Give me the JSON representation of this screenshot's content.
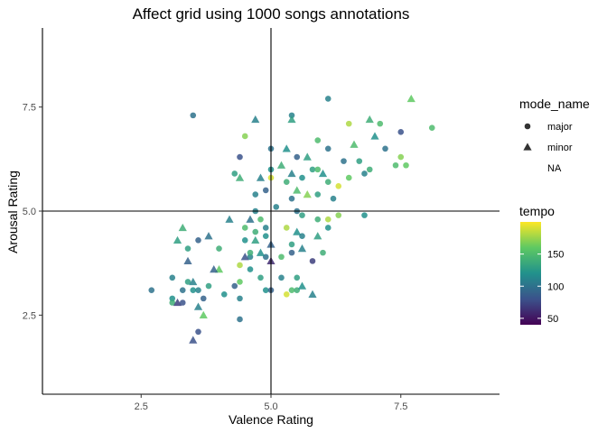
{
  "chart_data": {
    "type": "scatter",
    "title": "Affect grid using 1000 songs annotations",
    "xlabel": "Valence Rating",
    "ylabel": "Arousal Rating",
    "xlim": [
      0.6,
      9.4
    ],
    "ylim": [
      0.6,
      9.4
    ],
    "x_ticks": [
      2.5,
      5.0,
      7.5
    ],
    "x_tick_labels": [
      "2.5",
      "5.0",
      "7.5"
    ],
    "y_ticks": [
      2.5,
      5.0,
      7.5
    ],
    "y_tick_labels": [
      "2.5",
      "5.0",
      "7.5"
    ],
    "reference_lines": {
      "x": 5.0,
      "y": 5.0
    },
    "grid": false,
    "legend_placement": "right",
    "shape_legend": {
      "title": "mode_name",
      "entries": [
        {
          "label": "major",
          "shape": "circle"
        },
        {
          "label": "minor",
          "shape": "triangle"
        },
        {
          "label": "NA",
          "shape": "none"
        }
      ]
    },
    "color_legend": {
      "title": "tempo",
      "min": 40,
      "max": 200,
      "ticks": [
        50,
        100,
        150
      ],
      "tick_labels": [
        "50",
        "100",
        "150"
      ],
      "colors": [
        "#440154",
        "#3b528b",
        "#21918c",
        "#5ec962",
        "#fde725"
      ]
    },
    "points": [
      {
        "x": 3.5,
        "y": 7.3,
        "mode": "major",
        "tempo": 100
      },
      {
        "x": 4.3,
        "y": 5.9,
        "mode": "major",
        "tempo": 130
      },
      {
        "x": 4.4,
        "y": 6.3,
        "mode": "major",
        "tempo": 80
      },
      {
        "x": 4.5,
        "y": 6.8,
        "mode": "major",
        "tempo": 170
      },
      {
        "x": 4.7,
        "y": 7.2,
        "mode": "minor",
        "tempo": 110
      },
      {
        "x": 4.4,
        "y": 5.8,
        "mode": "minor",
        "tempo": 140
      },
      {
        "x": 4.7,
        "y": 5.4,
        "mode": "major",
        "tempo": 110
      },
      {
        "x": 4.9,
        "y": 5.5,
        "mode": "major",
        "tempo": 90
      },
      {
        "x": 5.0,
        "y": 6.5,
        "mode": "major",
        "tempo": 100
      },
      {
        "x": 5.0,
        "y": 6.0,
        "mode": "major",
        "tempo": 120
      },
      {
        "x": 5.0,
        "y": 5.8,
        "mode": "major",
        "tempo": 190
      },
      {
        "x": 5.1,
        "y": 5.1,
        "mode": "major",
        "tempo": 110
      },
      {
        "x": 5.3,
        "y": 6.5,
        "mode": "minor",
        "tempo": 120
      },
      {
        "x": 5.4,
        "y": 7.3,
        "mode": "major",
        "tempo": 110
      },
      {
        "x": 5.4,
        "y": 7.2,
        "mode": "minor",
        "tempo": 130
      },
      {
        "x": 5.5,
        "y": 6.3,
        "mode": "major",
        "tempo": 90
      },
      {
        "x": 5.4,
        "y": 5.9,
        "mode": "minor",
        "tempo": 110
      },
      {
        "x": 5.6,
        "y": 5.8,
        "mode": "major",
        "tempo": 120
      },
      {
        "x": 5.3,
        "y": 5.7,
        "mode": "major",
        "tempo": 140
      },
      {
        "x": 5.5,
        "y": 5.5,
        "mode": "minor",
        "tempo": 150
      },
      {
        "x": 5.4,
        "y": 5.3,
        "mode": "major",
        "tempo": 100
      },
      {
        "x": 5.7,
        "y": 5.4,
        "mode": "minor",
        "tempo": 170
      },
      {
        "x": 5.8,
        "y": 6.0,
        "mode": "major",
        "tempo": 130
      },
      {
        "x": 5.9,
        "y": 6.7,
        "mode": "major",
        "tempo": 150
      },
      {
        "x": 6.0,
        "y": 5.9,
        "mode": "minor",
        "tempo": 120
      },
      {
        "x": 6.1,
        "y": 7.7,
        "mode": "major",
        "tempo": 110
      },
      {
        "x": 6.1,
        "y": 6.5,
        "mode": "major",
        "tempo": 100
      },
      {
        "x": 6.1,
        "y": 5.7,
        "mode": "major",
        "tempo": 140
      },
      {
        "x": 6.2,
        "y": 5.3,
        "mode": "major",
        "tempo": 110
      },
      {
        "x": 6.3,
        "y": 5.6,
        "mode": "major",
        "tempo": 190
      },
      {
        "x": 6.4,
        "y": 6.2,
        "mode": "major",
        "tempo": 100
      },
      {
        "x": 6.5,
        "y": 7.1,
        "mode": "major",
        "tempo": 180
      },
      {
        "x": 6.6,
        "y": 6.6,
        "mode": "minor",
        "tempo": 150
      },
      {
        "x": 6.7,
        "y": 6.2,
        "mode": "major",
        "tempo": 130
      },
      {
        "x": 6.8,
        "y": 5.9,
        "mode": "major",
        "tempo": 110
      },
      {
        "x": 6.9,
        "y": 7.2,
        "mode": "minor",
        "tempo": 140
      },
      {
        "x": 7.0,
        "y": 6.8,
        "mode": "minor",
        "tempo": 120
      },
      {
        "x": 7.1,
        "y": 7.1,
        "mode": "major",
        "tempo": 150
      },
      {
        "x": 7.2,
        "y": 6.5,
        "mode": "major",
        "tempo": 100
      },
      {
        "x": 7.5,
        "y": 6.9,
        "mode": "major",
        "tempo": 80
      },
      {
        "x": 7.5,
        "y": 6.3,
        "mode": "major",
        "tempo": 170
      },
      {
        "x": 7.7,
        "y": 7.7,
        "mode": "minor",
        "tempo": 160
      },
      {
        "x": 8.1,
        "y": 7.0,
        "mode": "major",
        "tempo": 150
      },
      {
        "x": 7.4,
        "y": 6.1,
        "mode": "major",
        "tempo": 150
      },
      {
        "x": 7.6,
        "y": 6.1,
        "mode": "major",
        "tempo": 160
      },
      {
        "x": 6.9,
        "y": 6.0,
        "mode": "major",
        "tempo": 140
      },
      {
        "x": 6.5,
        "y": 5.8,
        "mode": "major",
        "tempo": 160
      },
      {
        "x": 5.9,
        "y": 5.4,
        "mode": "major",
        "tempo": 130
      },
      {
        "x": 6.8,
        "y": 4.9,
        "mode": "major",
        "tempo": 120
      },
      {
        "x": 6.3,
        "y": 4.9,
        "mode": "major",
        "tempo": 170
      },
      {
        "x": 6.1,
        "y": 4.8,
        "mode": "major",
        "tempo": 180
      },
      {
        "x": 5.9,
        "y": 4.8,
        "mode": "major",
        "tempo": 140
      },
      {
        "x": 5.6,
        "y": 4.9,
        "mode": "major",
        "tempo": 130
      },
      {
        "x": 5.5,
        "y": 5.0,
        "mode": "major",
        "tempo": 100
      },
      {
        "x": 5.3,
        "y": 4.6,
        "mode": "major",
        "tempo": 180
      },
      {
        "x": 5.5,
        "y": 4.5,
        "mode": "minor",
        "tempo": 120
      },
      {
        "x": 5.6,
        "y": 4.4,
        "mode": "major",
        "tempo": 110
      },
      {
        "x": 5.4,
        "y": 4.2,
        "mode": "major",
        "tempo": 130
      },
      {
        "x": 5.4,
        "y": 4.0,
        "mode": "major",
        "tempo": 90
      },
      {
        "x": 5.6,
        "y": 4.1,
        "mode": "minor",
        "tempo": 110
      },
      {
        "x": 5.2,
        "y": 3.9,
        "mode": "major",
        "tempo": 150
      },
      {
        "x": 5.0,
        "y": 4.2,
        "mode": "minor",
        "tempo": 90
      },
      {
        "x": 5.0,
        "y": 3.8,
        "mode": "minor",
        "tempo": 60
      },
      {
        "x": 4.9,
        "y": 4.4,
        "mode": "major",
        "tempo": 120
      },
      {
        "x": 4.9,
        "y": 4.6,
        "mode": "major",
        "tempo": 110
      },
      {
        "x": 4.8,
        "y": 4.8,
        "mode": "major",
        "tempo": 150
      },
      {
        "x": 4.7,
        "y": 4.5,
        "mode": "major",
        "tempo": 140
      },
      {
        "x": 4.7,
        "y": 4.3,
        "mode": "minor",
        "tempo": 130
      },
      {
        "x": 4.6,
        "y": 4.8,
        "mode": "minor",
        "tempo": 100
      },
      {
        "x": 4.9,
        "y": 3.9,
        "mode": "major",
        "tempo": 100
      },
      {
        "x": 4.8,
        "y": 3.4,
        "mode": "major",
        "tempo": 130
      },
      {
        "x": 4.9,
        "y": 3.1,
        "mode": "major",
        "tempo": 120
      },
      {
        "x": 5.0,
        "y": 3.1,
        "mode": "major",
        "tempo": 90
      },
      {
        "x": 5.3,
        "y": 3.0,
        "mode": "major",
        "tempo": 190
      },
      {
        "x": 5.4,
        "y": 3.1,
        "mode": "major",
        "tempo": 150
      },
      {
        "x": 5.5,
        "y": 3.1,
        "mode": "major",
        "tempo": 140
      },
      {
        "x": 5.5,
        "y": 3.4,
        "mode": "major",
        "tempo": 130
      },
      {
        "x": 5.2,
        "y": 3.4,
        "mode": "major",
        "tempo": 110
      },
      {
        "x": 5.6,
        "y": 3.2,
        "mode": "minor",
        "tempo": 120
      },
      {
        "x": 5.8,
        "y": 3.0,
        "mode": "minor",
        "tempo": 110
      },
      {
        "x": 5.8,
        "y": 3.8,
        "mode": "major",
        "tempo": 70
      },
      {
        "x": 5.9,
        "y": 4.4,
        "mode": "minor",
        "tempo": 130
      },
      {
        "x": 6.1,
        "y": 4.6,
        "mode": "major",
        "tempo": 120
      },
      {
        "x": 6.0,
        "y": 4.0,
        "mode": "major",
        "tempo": 140
      },
      {
        "x": 4.6,
        "y": 3.9,
        "mode": "major",
        "tempo": 110
      },
      {
        "x": 4.6,
        "y": 3.6,
        "mode": "major",
        "tempo": 120
      },
      {
        "x": 4.5,
        "y": 3.9,
        "mode": "minor",
        "tempo": 80
      },
      {
        "x": 4.4,
        "y": 3.7,
        "mode": "major",
        "tempo": 180
      },
      {
        "x": 4.4,
        "y": 3.3,
        "mode": "major",
        "tempo": 160
      },
      {
        "x": 4.3,
        "y": 3.2,
        "mode": "major",
        "tempo": 90
      },
      {
        "x": 4.4,
        "y": 2.9,
        "mode": "major",
        "tempo": 110
      },
      {
        "x": 4.4,
        "y": 2.4,
        "mode": "major",
        "tempo": 100
      },
      {
        "x": 4.1,
        "y": 3.0,
        "mode": "major",
        "tempo": 120
      },
      {
        "x": 4.0,
        "y": 3.6,
        "mode": "minor",
        "tempo": 160
      },
      {
        "x": 3.9,
        "y": 3.6,
        "mode": "minor",
        "tempo": 90
      },
      {
        "x": 3.8,
        "y": 3.2,
        "mode": "major",
        "tempo": 130
      },
      {
        "x": 3.7,
        "y": 2.9,
        "mode": "major",
        "tempo": 90
      },
      {
        "x": 3.6,
        "y": 3.1,
        "mode": "major",
        "tempo": 110
      },
      {
        "x": 3.6,
        "y": 2.7,
        "mode": "minor",
        "tempo": 110
      },
      {
        "x": 3.7,
        "y": 2.5,
        "mode": "minor",
        "tempo": 160
      },
      {
        "x": 3.6,
        "y": 2.1,
        "mode": "major",
        "tempo": 80
      },
      {
        "x": 3.5,
        "y": 1.9,
        "mode": "minor",
        "tempo": 80
      },
      {
        "x": 3.5,
        "y": 3.1,
        "mode": "major",
        "tempo": 120
      },
      {
        "x": 3.4,
        "y": 3.3,
        "mode": "major",
        "tempo": 130
      },
      {
        "x": 3.5,
        "y": 3.3,
        "mode": "minor",
        "tempo": 110
      },
      {
        "x": 3.3,
        "y": 3.1,
        "mode": "major",
        "tempo": 100
      },
      {
        "x": 3.4,
        "y": 3.8,
        "mode": "minor",
        "tempo": 90
      },
      {
        "x": 3.4,
        "y": 4.1,
        "mode": "major",
        "tempo": 130
      },
      {
        "x": 3.3,
        "y": 4.6,
        "mode": "minor",
        "tempo": 140
      },
      {
        "x": 3.2,
        "y": 4.3,
        "mode": "minor",
        "tempo": 130
      },
      {
        "x": 3.1,
        "y": 3.4,
        "mode": "major",
        "tempo": 110
      },
      {
        "x": 3.1,
        "y": 2.9,
        "mode": "major",
        "tempo": 120
      },
      {
        "x": 3.1,
        "y": 2.8,
        "mode": "major",
        "tempo": 140
      },
      {
        "x": 3.2,
        "y": 2.8,
        "mode": "minor",
        "tempo": 70
      },
      {
        "x": 3.3,
        "y": 2.8,
        "mode": "major",
        "tempo": 80
      },
      {
        "x": 2.7,
        "y": 3.1,
        "mode": "major",
        "tempo": 100
      },
      {
        "x": 3.8,
        "y": 4.4,
        "mode": "minor",
        "tempo": 100
      },
      {
        "x": 3.6,
        "y": 4.3,
        "mode": "major",
        "tempo": 90
      },
      {
        "x": 4.0,
        "y": 4.1,
        "mode": "major",
        "tempo": 140
      },
      {
        "x": 4.2,
        "y": 4.8,
        "mode": "minor",
        "tempo": 110
      },
      {
        "x": 4.5,
        "y": 4.6,
        "mode": "major",
        "tempo": 150
      },
      {
        "x": 4.5,
        "y": 4.3,
        "mode": "major",
        "tempo": 120
      },
      {
        "x": 4.6,
        "y": 4.0,
        "mode": "major",
        "tempo": 140
      },
      {
        "x": 4.8,
        "y": 4.0,
        "mode": "minor",
        "tempo": 120
      },
      {
        "x": 4.7,
        "y": 5.0,
        "mode": "major",
        "tempo": 110
      },
      {
        "x": 4.8,
        "y": 5.8,
        "mode": "minor",
        "tempo": 110
      },
      {
        "x": 5.2,
        "y": 6.1,
        "mode": "minor",
        "tempo": 140
      },
      {
        "x": 5.7,
        "y": 6.3,
        "mode": "minor",
        "tempo": 130
      },
      {
        "x": 5.9,
        "y": 6.0,
        "mode": "major",
        "tempo": 150
      }
    ]
  }
}
